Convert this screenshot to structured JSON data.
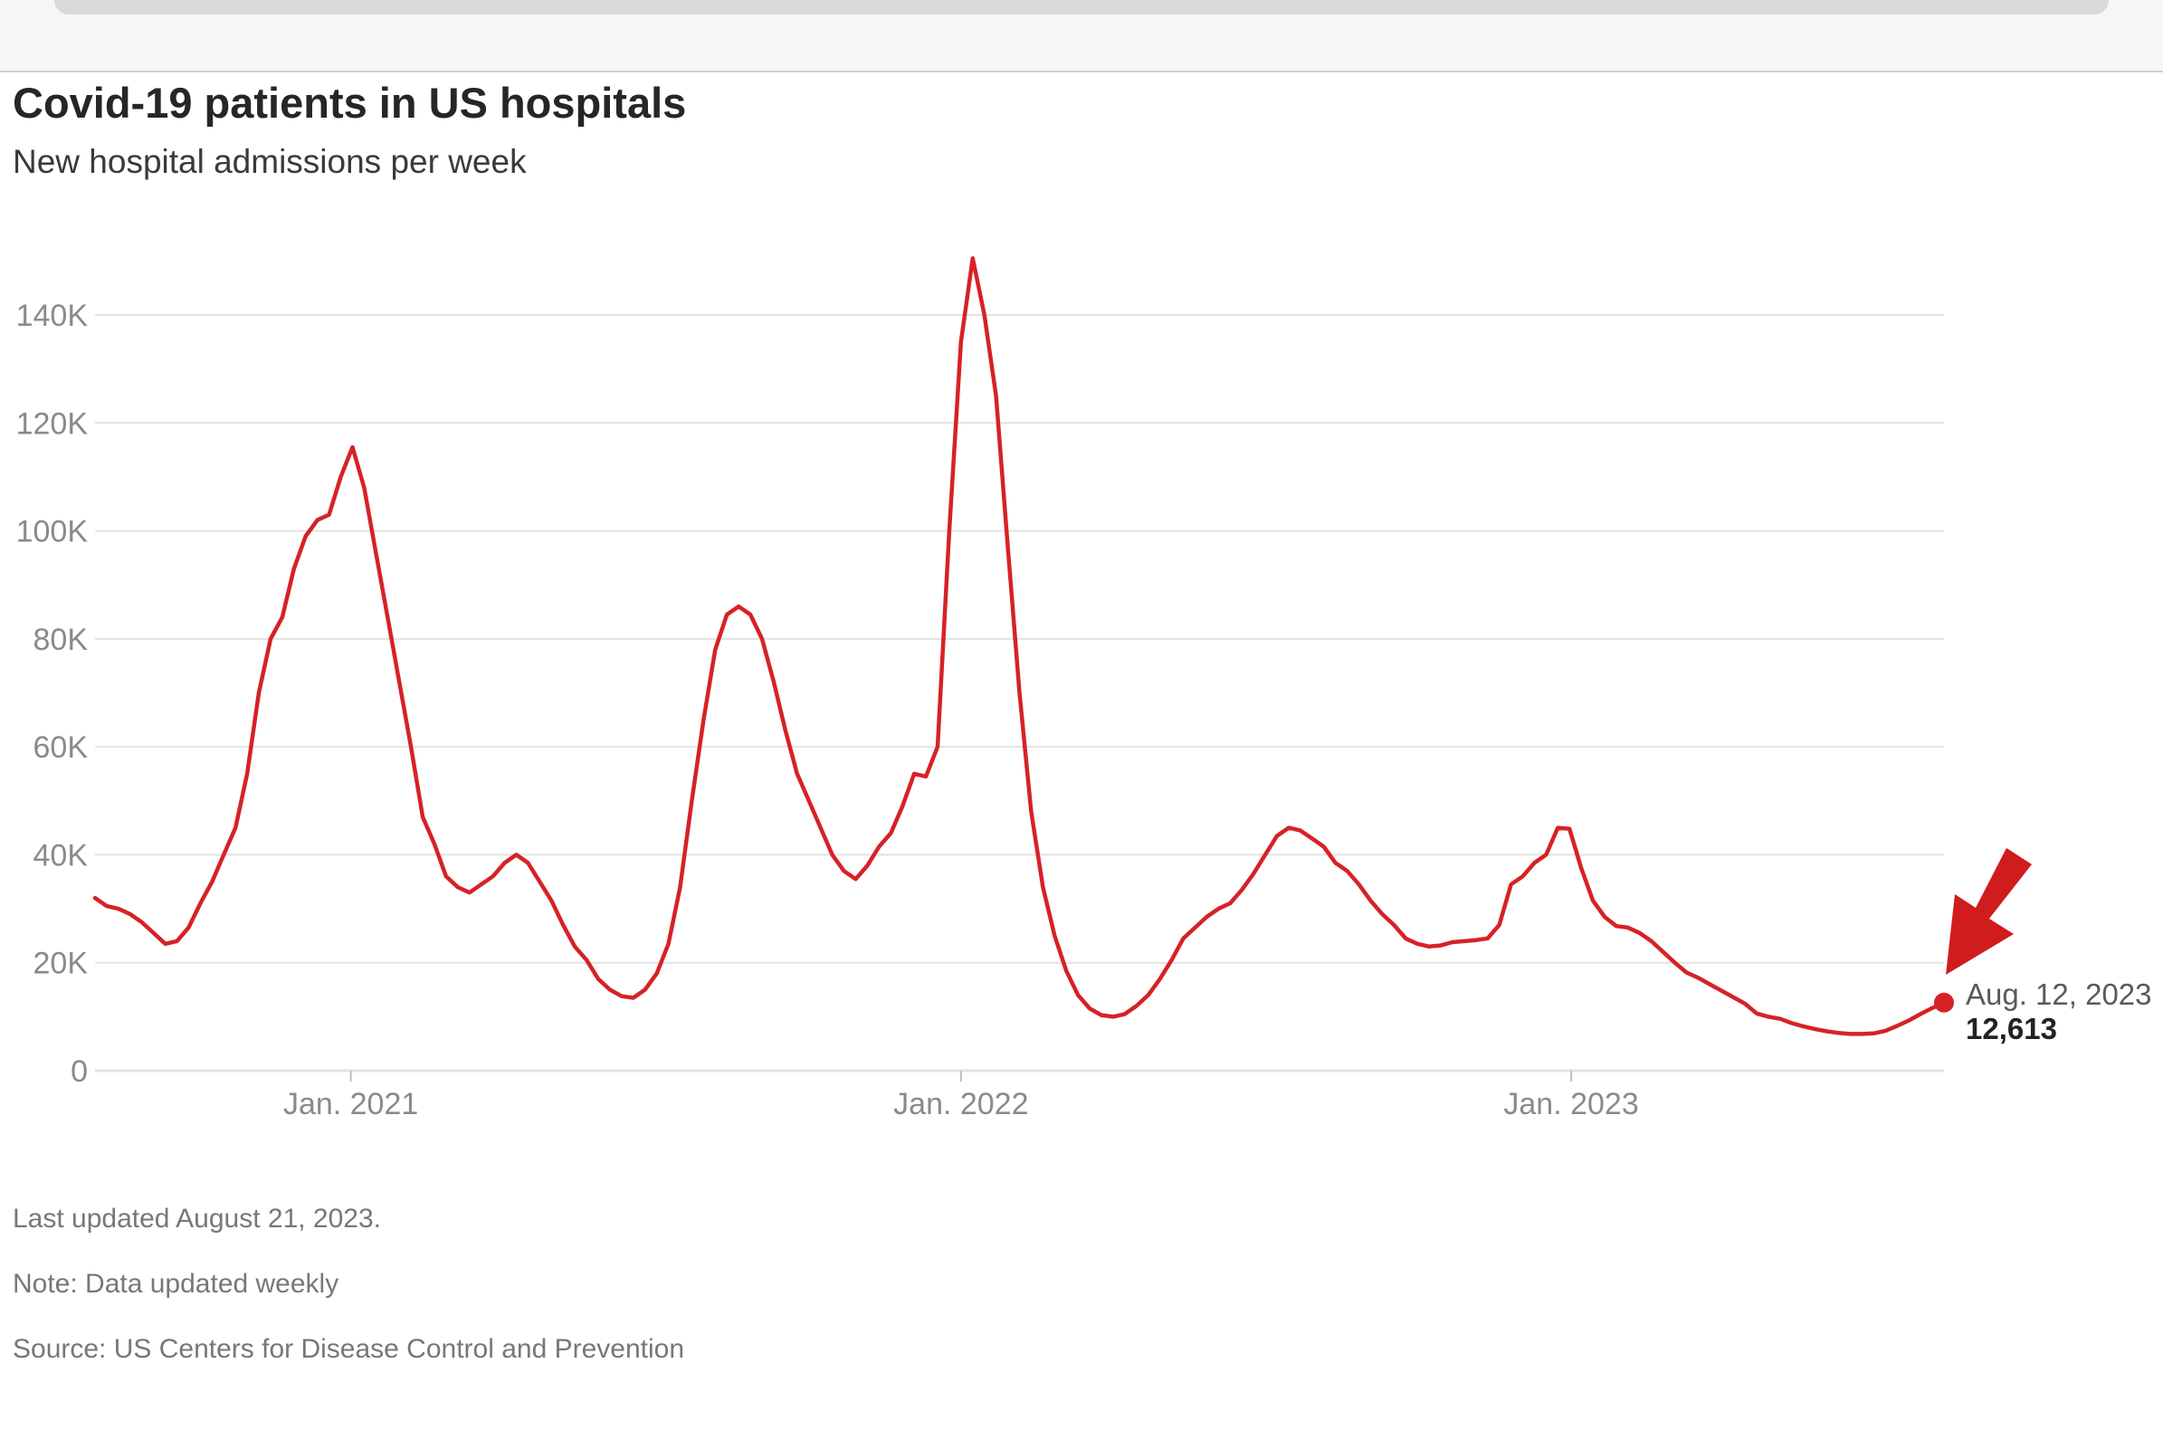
{
  "title": "Covid-19 patients in US hospitals",
  "subtitle": "New hospital admissions per week",
  "footer": {
    "updated": "Last updated August 21, 2023.",
    "note": "Note: Data updated weekly",
    "source": "Source: US Centers for Disease Control and Prevention"
  },
  "colors": {
    "line": "#d62226",
    "grid": "#e2e2e2",
    "arrow": "#d01c1c"
  },
  "annotation": {
    "date": "Aug. 12, 2023",
    "value": "12,613"
  },
  "chart_data": {
    "type": "line",
    "title": "Covid-19 patients in US hospitals",
    "subtitle": "New hospital admissions per week",
    "xlabel": "",
    "ylabel": "",
    "ylim": [
      0,
      150000
    ],
    "yticks": [
      0,
      20000,
      40000,
      60000,
      80000,
      100000,
      120000,
      140000
    ],
    "ytick_labels": [
      "0",
      "20K",
      "40K",
      "60K",
      "80K",
      "100K",
      "120K",
      "140K"
    ],
    "xticks": [
      "2021-01-01",
      "2022-01-01",
      "2023-01-01"
    ],
    "xtick_labels": [
      "Jan. 2021",
      "Jan. 2022",
      "Jan. 2023"
    ],
    "grid": true,
    "legend": "none",
    "series": [
      {
        "name": "",
        "points": [
          [
            "2020-08-01",
            32000
          ],
          [
            "2020-08-08",
            30500
          ],
          [
            "2020-08-15",
            30000
          ],
          [
            "2020-08-22",
            29000
          ],
          [
            "2020-08-29",
            27500
          ],
          [
            "2020-09-05",
            25500
          ],
          [
            "2020-09-12",
            23500
          ],
          [
            "2020-09-19",
            24000
          ],
          [
            "2020-09-26",
            26500
          ],
          [
            "2020-10-03",
            31000
          ],
          [
            "2020-10-10",
            35000
          ],
          [
            "2020-10-17",
            40000
          ],
          [
            "2020-10-24",
            45000
          ],
          [
            "2020-10-31",
            55000
          ],
          [
            "2020-11-07",
            70000
          ],
          [
            "2020-11-14",
            80000
          ],
          [
            "2020-11-21",
            84000
          ],
          [
            "2020-11-28",
            93000
          ],
          [
            "2020-12-05",
            99000
          ],
          [
            "2020-12-12",
            102000
          ],
          [
            "2020-12-19",
            103000
          ],
          [
            "2020-12-26",
            110000
          ],
          [
            "2021-01-02",
            115500
          ],
          [
            "2021-01-09",
            108000
          ],
          [
            "2021-01-16",
            96000
          ],
          [
            "2021-01-23",
            84000
          ],
          [
            "2021-01-30",
            72000
          ],
          [
            "2021-02-06",
            60000
          ],
          [
            "2021-02-13",
            47000
          ],
          [
            "2021-02-20",
            42000
          ],
          [
            "2021-02-27",
            36000
          ],
          [
            "2021-03-06",
            34000
          ],
          [
            "2021-03-13",
            33000
          ],
          [
            "2021-03-20",
            34500
          ],
          [
            "2021-03-27",
            36000
          ],
          [
            "2021-04-03",
            38500
          ],
          [
            "2021-04-10",
            40000
          ],
          [
            "2021-04-17",
            38500
          ],
          [
            "2021-04-24",
            35000
          ],
          [
            "2021-05-01",
            31500
          ],
          [
            "2021-05-08",
            27000
          ],
          [
            "2021-05-15",
            23000
          ],
          [
            "2021-05-22",
            20500
          ],
          [
            "2021-05-29",
            17000
          ],
          [
            "2021-06-05",
            15000
          ],
          [
            "2021-06-12",
            13800
          ],
          [
            "2021-06-19",
            13500
          ],
          [
            "2021-06-26",
            15000
          ],
          [
            "2021-07-03",
            18000
          ],
          [
            "2021-07-10",
            23500
          ],
          [
            "2021-07-17",
            34000
          ],
          [
            "2021-07-24",
            50000
          ],
          [
            "2021-07-31",
            65000
          ],
          [
            "2021-08-07",
            78000
          ],
          [
            "2021-08-14",
            84500
          ],
          [
            "2021-08-21",
            86000
          ],
          [
            "2021-08-28",
            84500
          ],
          [
            "2021-09-04",
            80000
          ],
          [
            "2021-09-11",
            72000
          ],
          [
            "2021-09-18",
            63000
          ],
          [
            "2021-09-25",
            55000
          ],
          [
            "2021-10-02",
            50000
          ],
          [
            "2021-10-09",
            45000
          ],
          [
            "2021-10-16",
            40000
          ],
          [
            "2021-10-23",
            37000
          ],
          [
            "2021-10-30",
            35500
          ],
          [
            "2021-11-06",
            38000
          ],
          [
            "2021-11-13",
            41500
          ],
          [
            "2021-11-20",
            44000
          ],
          [
            "2021-11-27",
            49000
          ],
          [
            "2021-12-04",
            55000
          ],
          [
            "2021-12-11",
            54500
          ],
          [
            "2021-12-18",
            60000
          ],
          [
            "2021-12-25",
            100000
          ],
          [
            "2022-01-01",
            135000
          ],
          [
            "2022-01-08",
            150500
          ],
          [
            "2022-01-15",
            140000
          ],
          [
            "2022-01-22",
            125000
          ],
          [
            "2022-01-29",
            97000
          ],
          [
            "2022-02-05",
            70000
          ],
          [
            "2022-02-12",
            48000
          ],
          [
            "2022-02-19",
            34000
          ],
          [
            "2022-02-26",
            25000
          ],
          [
            "2022-03-05",
            18500
          ],
          [
            "2022-03-12",
            14000
          ],
          [
            "2022-03-19",
            11500
          ],
          [
            "2022-03-26",
            10300
          ],
          [
            "2022-04-02",
            10000
          ],
          [
            "2022-04-09",
            10500
          ],
          [
            "2022-04-16",
            12000
          ],
          [
            "2022-04-23",
            14000
          ],
          [
            "2022-04-30",
            17000
          ],
          [
            "2022-05-07",
            20500
          ],
          [
            "2022-05-14",
            24500
          ],
          [
            "2022-05-21",
            26500
          ],
          [
            "2022-05-28",
            28500
          ],
          [
            "2022-06-04",
            30000
          ],
          [
            "2022-06-11",
            31000
          ],
          [
            "2022-06-18",
            33500
          ],
          [
            "2022-06-25",
            36500
          ],
          [
            "2022-07-02",
            40000
          ],
          [
            "2022-07-09",
            43500
          ],
          [
            "2022-07-16",
            45000
          ],
          [
            "2022-07-23",
            44500
          ],
          [
            "2022-07-30",
            43000
          ],
          [
            "2022-08-06",
            41500
          ],
          [
            "2022-08-13",
            38500
          ],
          [
            "2022-08-20",
            37000
          ],
          [
            "2022-08-27",
            34500
          ],
          [
            "2022-09-03",
            31500
          ],
          [
            "2022-09-10",
            29000
          ],
          [
            "2022-09-17",
            27000
          ],
          [
            "2022-09-24",
            24500
          ],
          [
            "2022-10-01",
            23500
          ],
          [
            "2022-10-08",
            23000
          ],
          [
            "2022-10-15",
            23200
          ],
          [
            "2022-10-22",
            23800
          ],
          [
            "2022-10-29",
            24000
          ],
          [
            "2022-11-05",
            24200
          ],
          [
            "2022-11-12",
            24500
          ],
          [
            "2022-11-19",
            27000
          ],
          [
            "2022-11-26",
            34500
          ],
          [
            "2022-12-03",
            36000
          ],
          [
            "2022-12-10",
            38500
          ],
          [
            "2022-12-17",
            40000
          ],
          [
            "2022-12-24",
            45000
          ],
          [
            "2022-12-31",
            44800
          ],
          [
            "2023-01-07",
            37500
          ],
          [
            "2023-01-14",
            31500
          ],
          [
            "2023-01-21",
            28500
          ],
          [
            "2023-01-28",
            26800
          ],
          [
            "2023-02-04",
            26500
          ],
          [
            "2023-02-11",
            25500
          ],
          [
            "2023-02-18",
            24000
          ],
          [
            "2023-02-25",
            22000
          ],
          [
            "2023-03-04",
            20000
          ],
          [
            "2023-03-11",
            18200
          ],
          [
            "2023-03-18",
            17200
          ],
          [
            "2023-03-25",
            16000
          ],
          [
            "2023-04-01",
            14800
          ],
          [
            "2023-04-08",
            13600
          ],
          [
            "2023-04-15",
            12400
          ],
          [
            "2023-04-22",
            10600
          ],
          [
            "2023-04-29",
            10000
          ],
          [
            "2023-05-06",
            9600
          ],
          [
            "2023-05-13",
            8800
          ],
          [
            "2023-05-20",
            8200
          ],
          [
            "2023-05-27",
            7700
          ],
          [
            "2023-06-03",
            7300
          ],
          [
            "2023-06-10",
            7000
          ],
          [
            "2023-06-17",
            6800
          ],
          [
            "2023-06-24",
            6800
          ],
          [
            "2023-07-01",
            6900
          ],
          [
            "2023-07-08",
            7400
          ],
          [
            "2023-07-15",
            8300
          ],
          [
            "2023-07-22",
            9300
          ],
          [
            "2023-07-29",
            10500
          ],
          [
            "2023-08-05",
            11600
          ],
          [
            "2023-08-12",
            12613
          ]
        ]
      }
    ]
  }
}
